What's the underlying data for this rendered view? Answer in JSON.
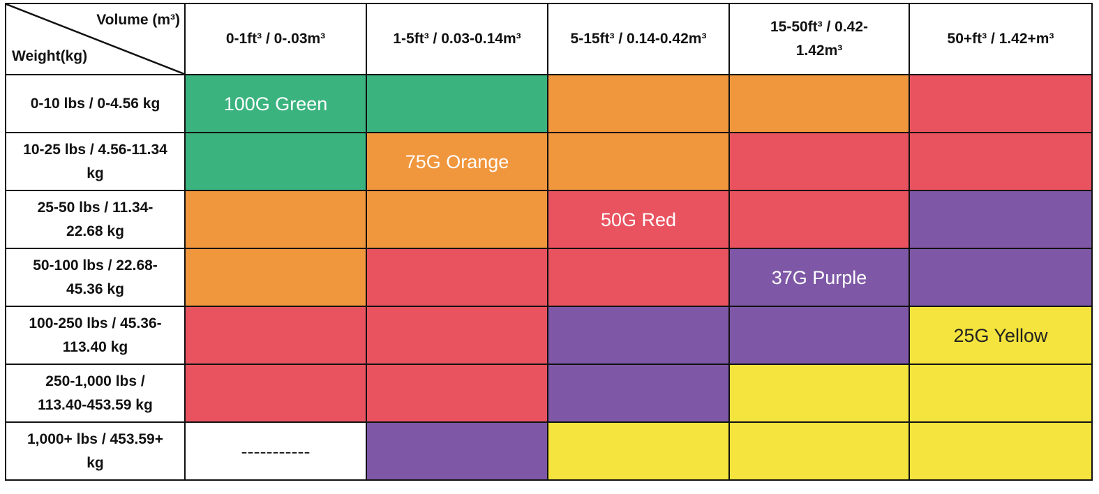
{
  "chart_data": {
    "type": "table",
    "corner": {
      "column_axis": "Volume (m³)",
      "row_axis": "Weight(kg)"
    },
    "columns": [
      "0-1ft³ / 0-.03m³",
      "1-5ft³ / 0.03-0.14m³",
      "5-15ft³ / 0.14-0.42m³",
      "15-50ft³ / 0.42-1.42m³",
      "50+ft³ / 1.42+m³"
    ],
    "rows": [
      "0-10 lbs / 0-4.56 kg",
      "10-25 lbs / 4.56-11.34 kg",
      "25-50 lbs / 11.34-22.68 kg",
      "50-100 lbs / 22.68-45.36 kg",
      "100-250 lbs / 45.36-113.40 kg",
      "250-1,000 lbs / 113.40-453.59 kg",
      "1,000+ lbs / 453.59+ kg"
    ],
    "colors": {
      "green": "#3bb37f",
      "orange": "#f0963d",
      "red": "#e95360",
      "purple": "#7e58a6",
      "yellow": "#f4e43d",
      "blank": "#ffffff"
    },
    "cells": [
      [
        {
          "color": "green",
          "label": "100G Green"
        },
        {
          "color": "green"
        },
        {
          "color": "orange"
        },
        {
          "color": "orange"
        },
        {
          "color": "red"
        }
      ],
      [
        {
          "color": "green"
        },
        {
          "color": "orange",
          "label": "75G Orange"
        },
        {
          "color": "orange"
        },
        {
          "color": "red"
        },
        {
          "color": "red"
        }
      ],
      [
        {
          "color": "orange"
        },
        {
          "color": "orange"
        },
        {
          "color": "red",
          "label": "50G Red"
        },
        {
          "color": "red"
        },
        {
          "color": "purple"
        }
      ],
      [
        {
          "color": "orange"
        },
        {
          "color": "red"
        },
        {
          "color": "red"
        },
        {
          "color": "purple",
          "label": "37G Purple"
        },
        {
          "color": "purple"
        }
      ],
      [
        {
          "color": "red"
        },
        {
          "color": "red"
        },
        {
          "color": "purple"
        },
        {
          "color": "purple"
        },
        {
          "color": "yellow",
          "label": "25G Yellow"
        }
      ],
      [
        {
          "color": "red"
        },
        {
          "color": "red"
        },
        {
          "color": "purple"
        },
        {
          "color": "yellow"
        },
        {
          "color": "yellow"
        }
      ],
      [
        {
          "color": "blank",
          "label": "-----------"
        },
        {
          "color": "purple"
        },
        {
          "color": "yellow"
        },
        {
          "color": "yellow"
        },
        {
          "color": "yellow"
        }
      ]
    ]
  }
}
